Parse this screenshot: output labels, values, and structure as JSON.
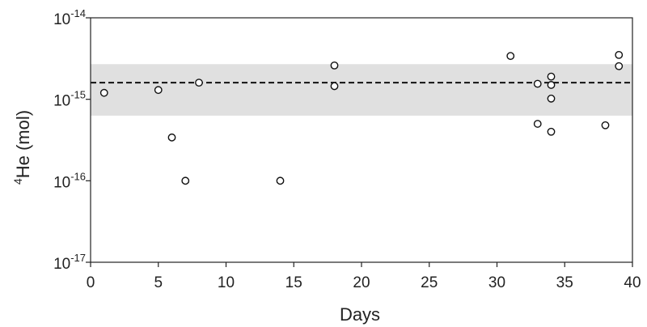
{
  "chart_data": {
    "type": "scatter",
    "xlabel": "Days",
    "ylabel": {
      "superscript": "4",
      "main": "He (mol)"
    },
    "xlim": [
      0,
      40
    ],
    "ylim": [
      1e-17,
      1e-14
    ],
    "y_scale": "log",
    "x_ticks": [
      0,
      5,
      10,
      15,
      20,
      25,
      30,
      35,
      40
    ],
    "y_ticks": [
      {
        "value": 1e-17,
        "base": "10",
        "exp": "-17"
      },
      {
        "value": 1e-16,
        "base": "10",
        "exp": "-16"
      },
      {
        "value": 1e-15,
        "base": "10",
        "exp": "-15"
      },
      {
        "value": 1e-14,
        "base": "10",
        "exp": "-14"
      }
    ],
    "grid": false,
    "reference_line": {
      "y": 1.6e-15,
      "style": "dashed",
      "color": "#111111"
    },
    "reference_band": {
      "y_low": 6.3e-16,
      "y_high": 2.7e-15,
      "color": "#e0e0e0"
    },
    "series": [
      {
        "marker": "open-circle",
        "points": [
          {
            "x": 1,
            "y": 1.2e-15
          },
          {
            "x": 5,
            "y": 1.3e-15
          },
          {
            "x": 6,
            "y": 3.4e-16
          },
          {
            "x": 7,
            "y": 1e-16
          },
          {
            "x": 8,
            "y": 1.6e-15
          },
          {
            "x": 14,
            "y": 1e-16
          },
          {
            "x": 18,
            "y": 2.6e-15
          },
          {
            "x": 18,
            "y": 1.45e-15
          },
          {
            "x": 31,
            "y": 3.4e-15
          },
          {
            "x": 33,
            "y": 1.55e-15
          },
          {
            "x": 33,
            "y": 5e-16
          },
          {
            "x": 34,
            "y": 1.9e-15
          },
          {
            "x": 34,
            "y": 1.5e-15
          },
          {
            "x": 34,
            "y": 1.02e-15
          },
          {
            "x": 34,
            "y": 4e-16
          },
          {
            "x": 38,
            "y": 4.8e-16
          },
          {
            "x": 39,
            "y": 3.5e-15
          },
          {
            "x": 39,
            "y": 2.55e-15
          }
        ]
      }
    ]
  }
}
